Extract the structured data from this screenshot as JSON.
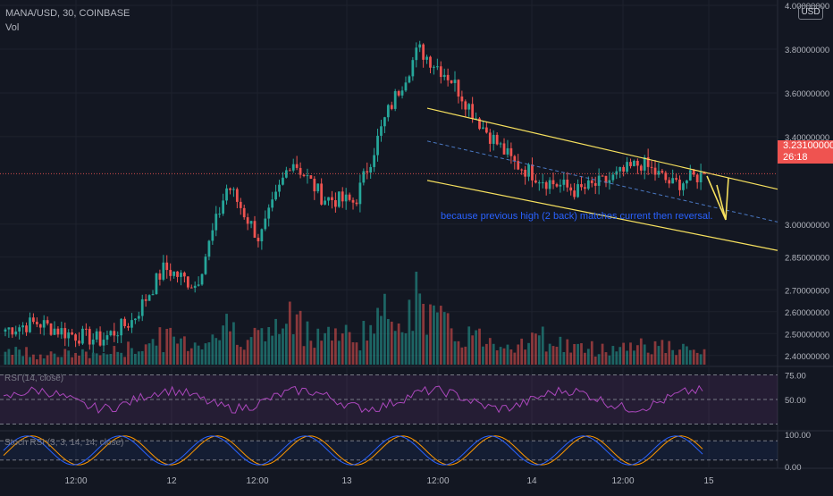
{
  "header": {
    "symbol": "MANA/USD, 30, COINBASE",
    "volume_label": "Vol",
    "currency_badge": "USD"
  },
  "price_badge": {
    "price": "3.23100000",
    "countdown": "26:18"
  },
  "annotation": "because previous high (2 back) matches current then reversal.",
  "panes": {
    "rsi_title": "RSI (14, close)",
    "stoch_title": "Stoch RSI (3, 3, 14, 14, close)"
  },
  "colors": {
    "background": "#131722",
    "up": "#26a69a",
    "down": "#ef5350",
    "channel": "#f6e05e",
    "rsi": "#ab47bc",
    "stoch_k": "#2962ff",
    "stoch_d": "#ff9800",
    "annotation": "#2962ff"
  },
  "chart_data": [
    {
      "type": "candlestick",
      "title": "MANA/USD, 30, COINBASE",
      "x_ticks": [
        "12:00",
        "12",
        "12:00",
        "13",
        "12:00",
        "14",
        "12:00",
        "15"
      ],
      "y_ticks": [
        "4.00000000",
        "3.80000000",
        "3.60000000",
        "3.40000000",
        "3.00000000",
        "2.85000000",
        "2.70000000",
        "2.60000000",
        "2.50000000",
        "2.40000000"
      ],
      "ylim": [
        2.35,
        4.0
      ],
      "current_price": 3.231,
      "approx_path": [
        2.52,
        2.55,
        2.5,
        2.47,
        2.56,
        2.8,
        2.72,
        3.18,
        2.93,
        3.3,
        3.12,
        3.1,
        3.5,
        3.8,
        3.67,
        3.45,
        3.28,
        3.2,
        3.15,
        3.2,
        3.28,
        3.18,
        3.23
      ]
    },
    {
      "type": "bar",
      "title": "Vol",
      "approx_volume": [
        3,
        2,
        2,
        2,
        3,
        5,
        4,
        7,
        5,
        8,
        6,
        5,
        9,
        12,
        6,
        5,
        4,
        5,
        3,
        3,
        4,
        3,
        2
      ]
    },
    {
      "type": "line",
      "title": "RSI (14, close)",
      "y_ticks": [
        "75.00",
        "50.00"
      ],
      "ylim": [
        20,
        80
      ]
    },
    {
      "type": "line",
      "title": "Stoch RSI (3, 3, 14, 14, close)",
      "y_ticks": [
        "100.00",
        "0.00"
      ],
      "ylim": [
        0,
        100
      ]
    }
  ]
}
